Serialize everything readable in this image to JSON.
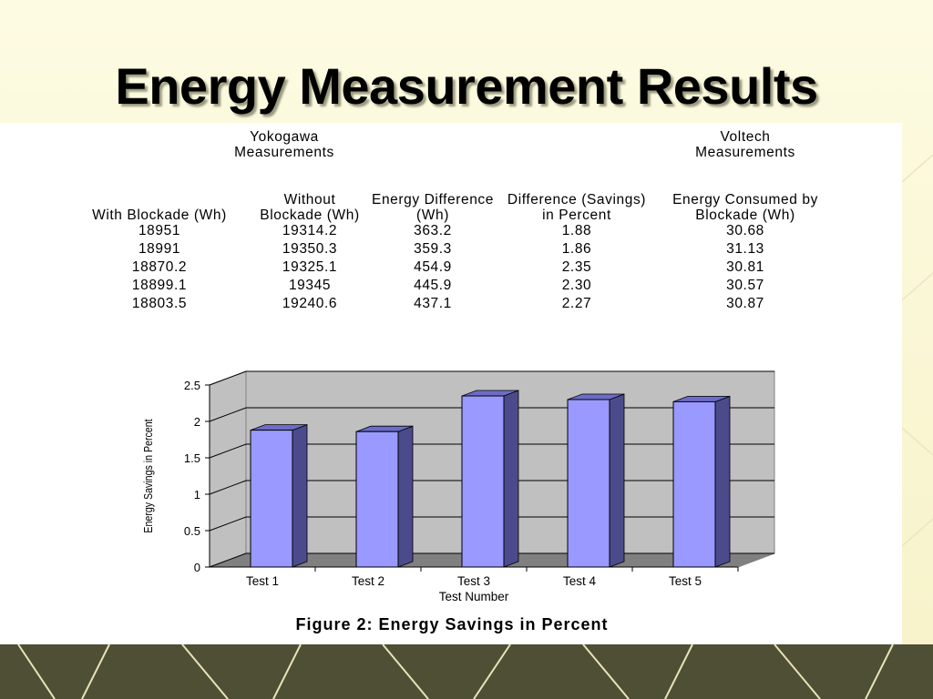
{
  "title": "Energy Measurement Results",
  "table": {
    "groups": [
      "Yokogawa Measurements",
      "Voltech Measurements"
    ],
    "columns": [
      "With Blockade (Wh)",
      "Without Blockade (Wh)",
      "Energy Difference (Wh)",
      "Difference (Savings) in Percent",
      "Energy Consumed by Blockade (Wh)"
    ],
    "rows": [
      [
        "18951",
        "19314.2",
        "363.2",
        "1.88",
        "30.68"
      ],
      [
        "18991",
        "19350.3",
        "359.3",
        "1.86",
        "31.13"
      ],
      [
        "18870.2",
        "19325.1",
        "454.9",
        "2.35",
        "30.81"
      ],
      [
        "18899.1",
        "19345",
        "445.9",
        "2.30",
        "30.57"
      ],
      [
        "18803.5",
        "19240.6",
        "437.1",
        "2.27",
        "30.87"
      ]
    ]
  },
  "chart_data": {
    "type": "bar",
    "caption": "Figure 2: Energy Savings in Percent",
    "x_label": "Test Number",
    "y_label": "Energy Savings in Percent",
    "categories": [
      "Test 1",
      "Test 2",
      "Test 3",
      "Test 4",
      "Test 5"
    ],
    "values": [
      1.88,
      1.86,
      2.35,
      2.3,
      2.27
    ],
    "color": "#9999ff",
    "ylim": [
      0,
      2.5
    ],
    "yticks": [
      0,
      0.5,
      1,
      1.5,
      2,
      2.5
    ],
    "grid": true
  }
}
